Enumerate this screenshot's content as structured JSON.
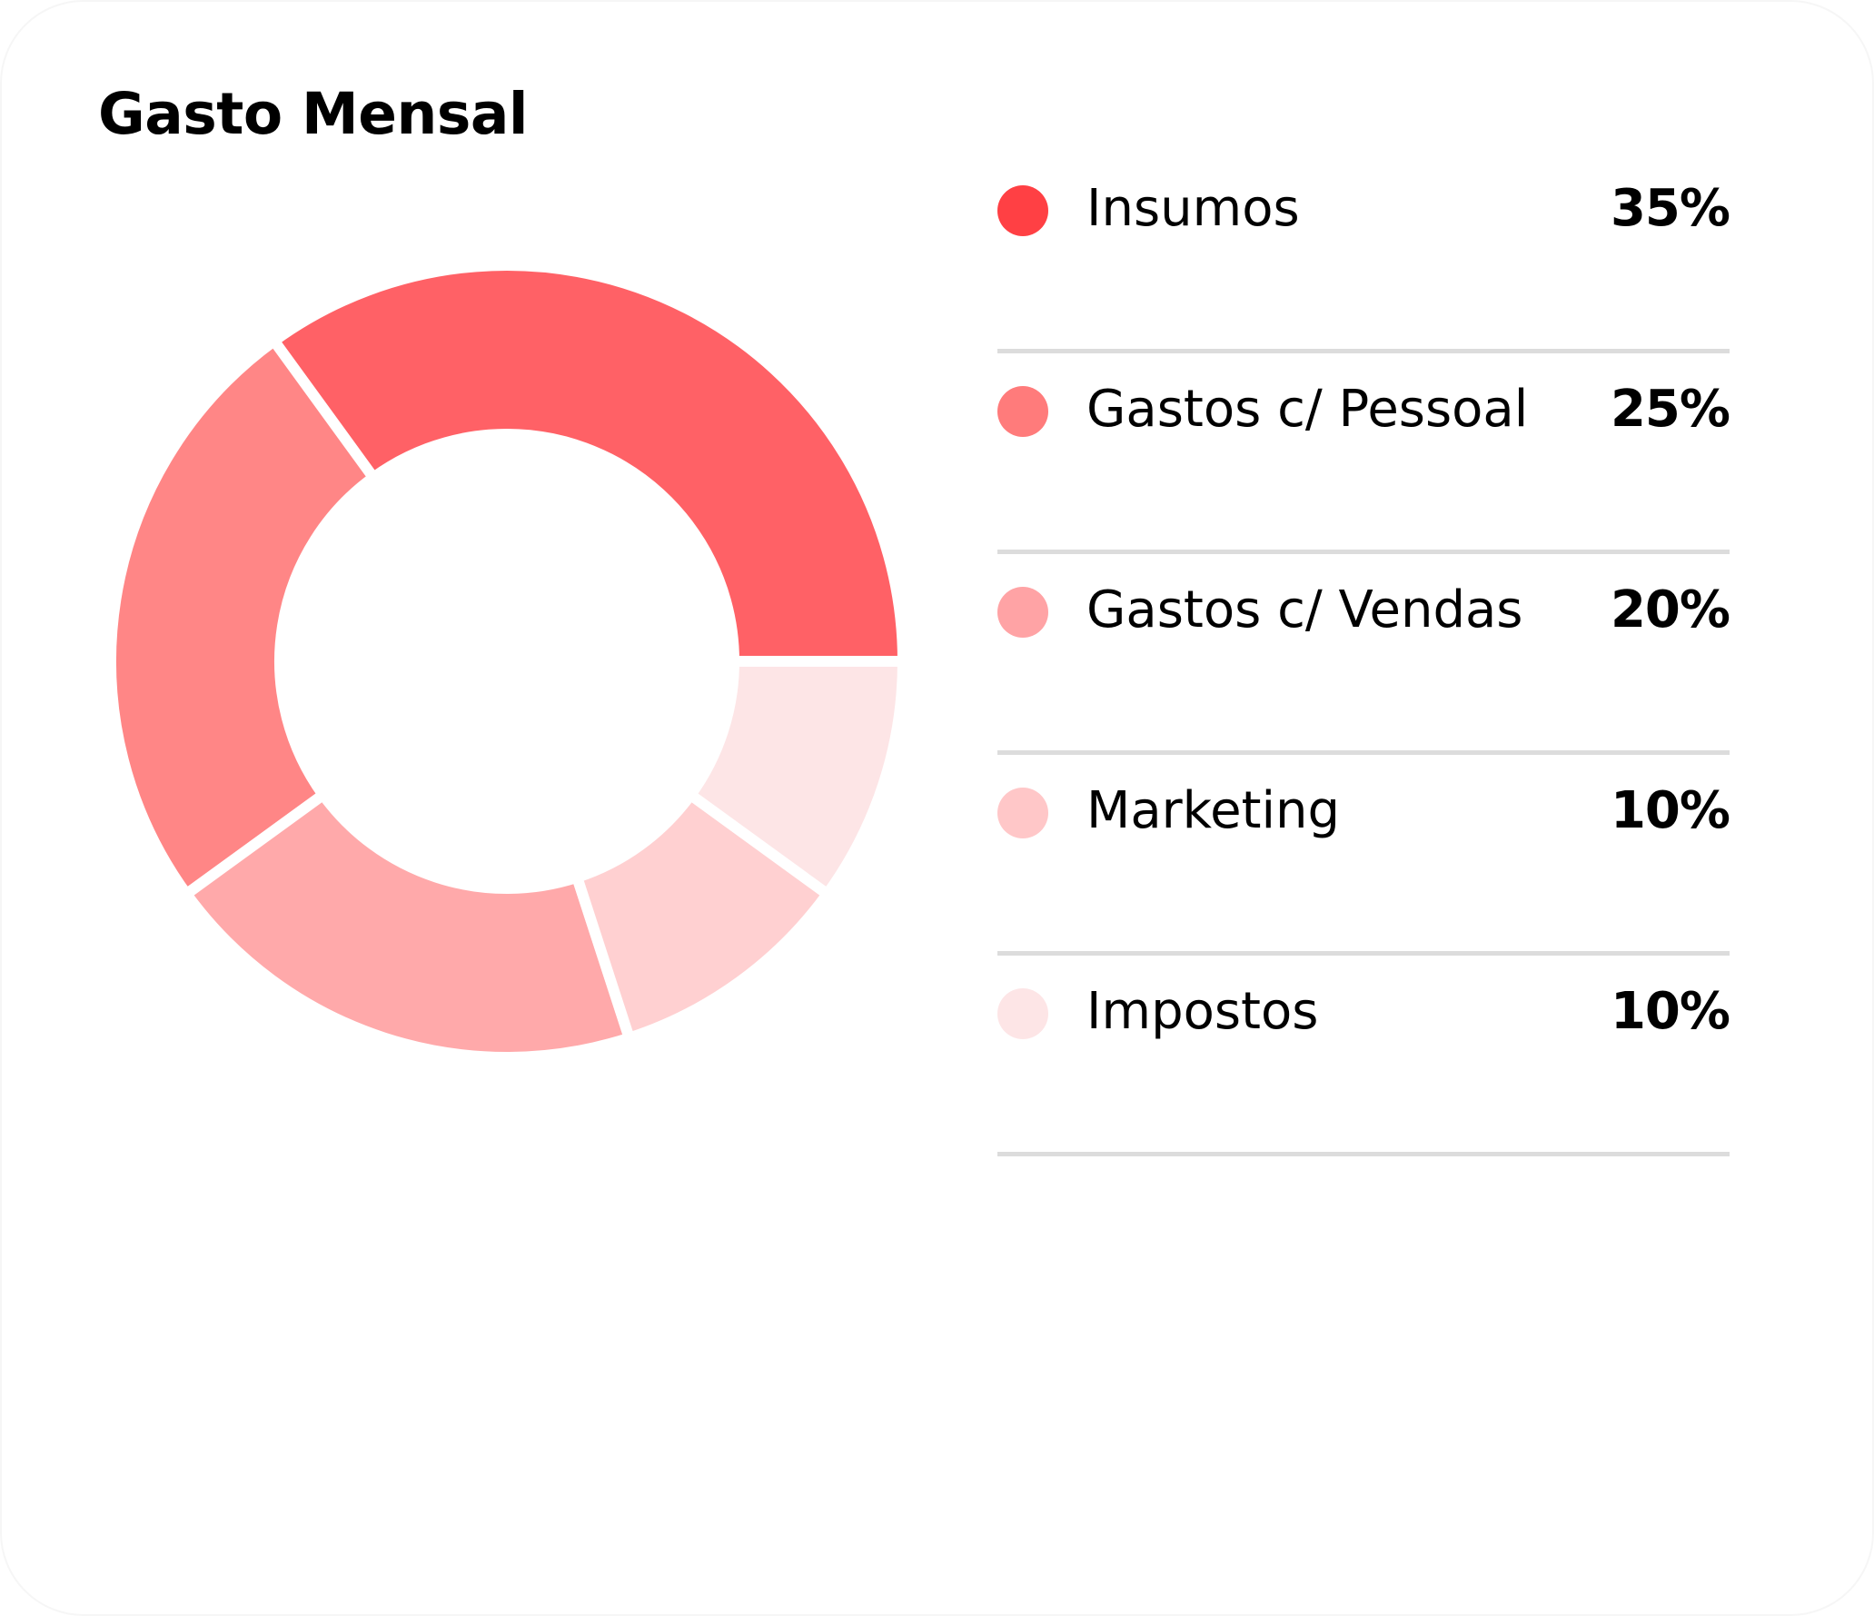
{
  "card": {
    "title": "Gasto Mensal"
  },
  "chart_data": {
    "type": "pie",
    "style": "donut",
    "title": "Gasto Mensal",
    "unit": "%",
    "categories": [
      "Insumos",
      "Gastos c/ Pessoal",
      "Gastos c/ Vendas",
      "Marketing",
      "Impostos"
    ],
    "values": [
      35,
      25,
      20,
      10,
      10
    ],
    "value_labels": [
      "35%",
      "25%",
      "20%",
      "10%",
      "10%"
    ],
    "legend_colors": [
      "#ff4044",
      "#ff7b7b",
      "#ffa3a5",
      "#ffc7c8",
      "#fde5e6"
    ],
    "slice_colors": [
      "#ff6166",
      "#ff8686",
      "#ffa9aa",
      "#ffd0d1",
      "#fde5e6"
    ],
    "legend_placement": "right",
    "grid": false
  }
}
